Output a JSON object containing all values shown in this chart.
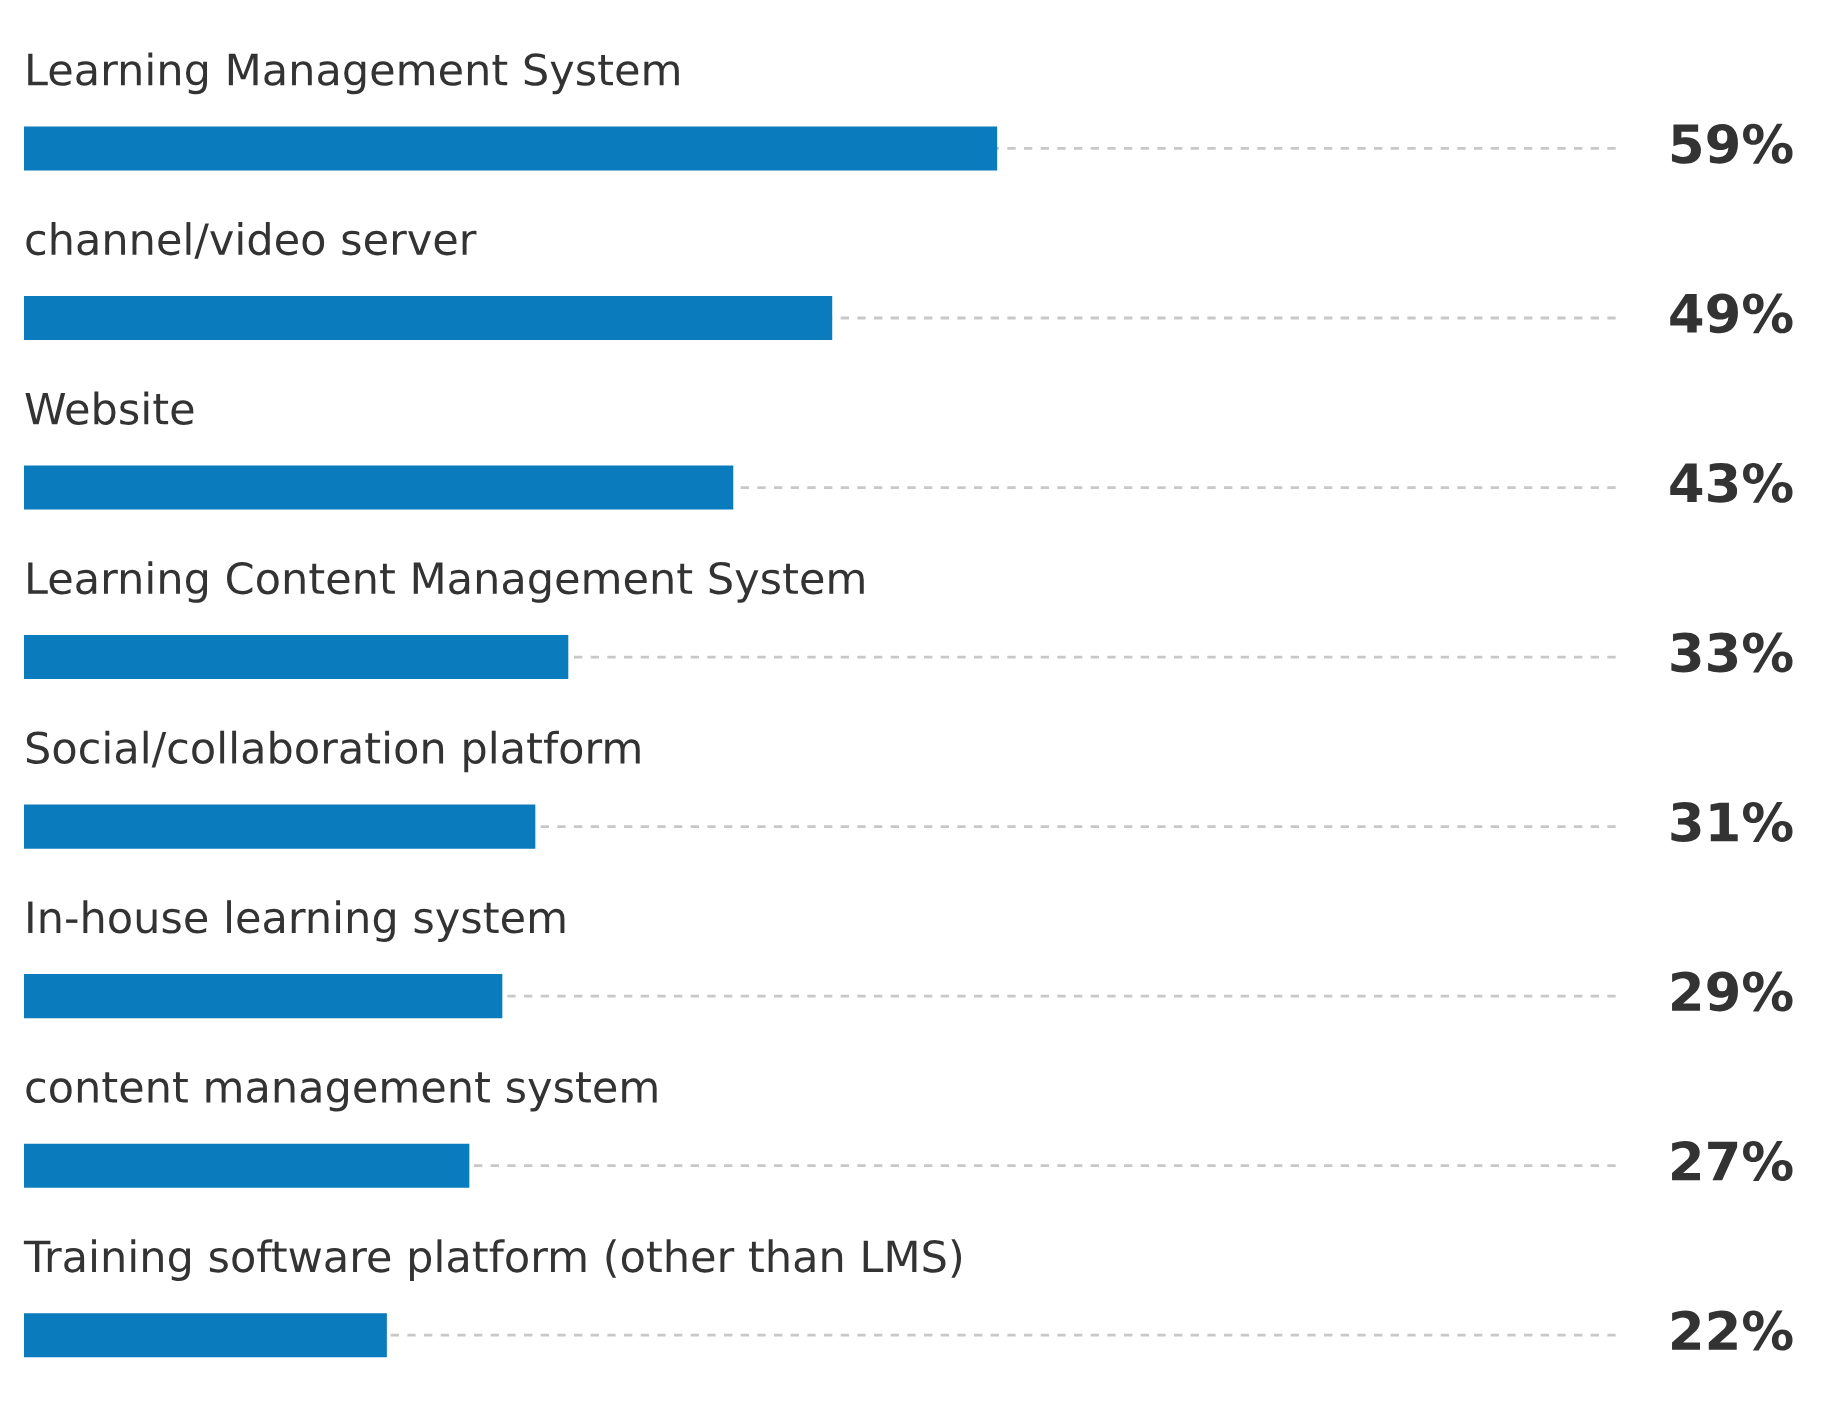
{
  "chart_data": {
    "type": "bar",
    "orientation": "horizontal",
    "categories": [
      "Learning Management System",
      "channel/video server",
      "Website",
      "Learning Content Management System",
      "Social/collaboration platform",
      "In-house learning system",
      "content management system",
      "Training software platform (other than LMS)"
    ],
    "values": [
      59,
      49,
      43,
      33,
      31,
      29,
      27,
      22
    ],
    "value_labels": [
      "59%",
      "49%",
      "43%",
      "33%",
      "31%",
      "29%",
      "27%",
      "22%"
    ],
    "color": "#0a7bbd",
    "grid": "y"
  }
}
